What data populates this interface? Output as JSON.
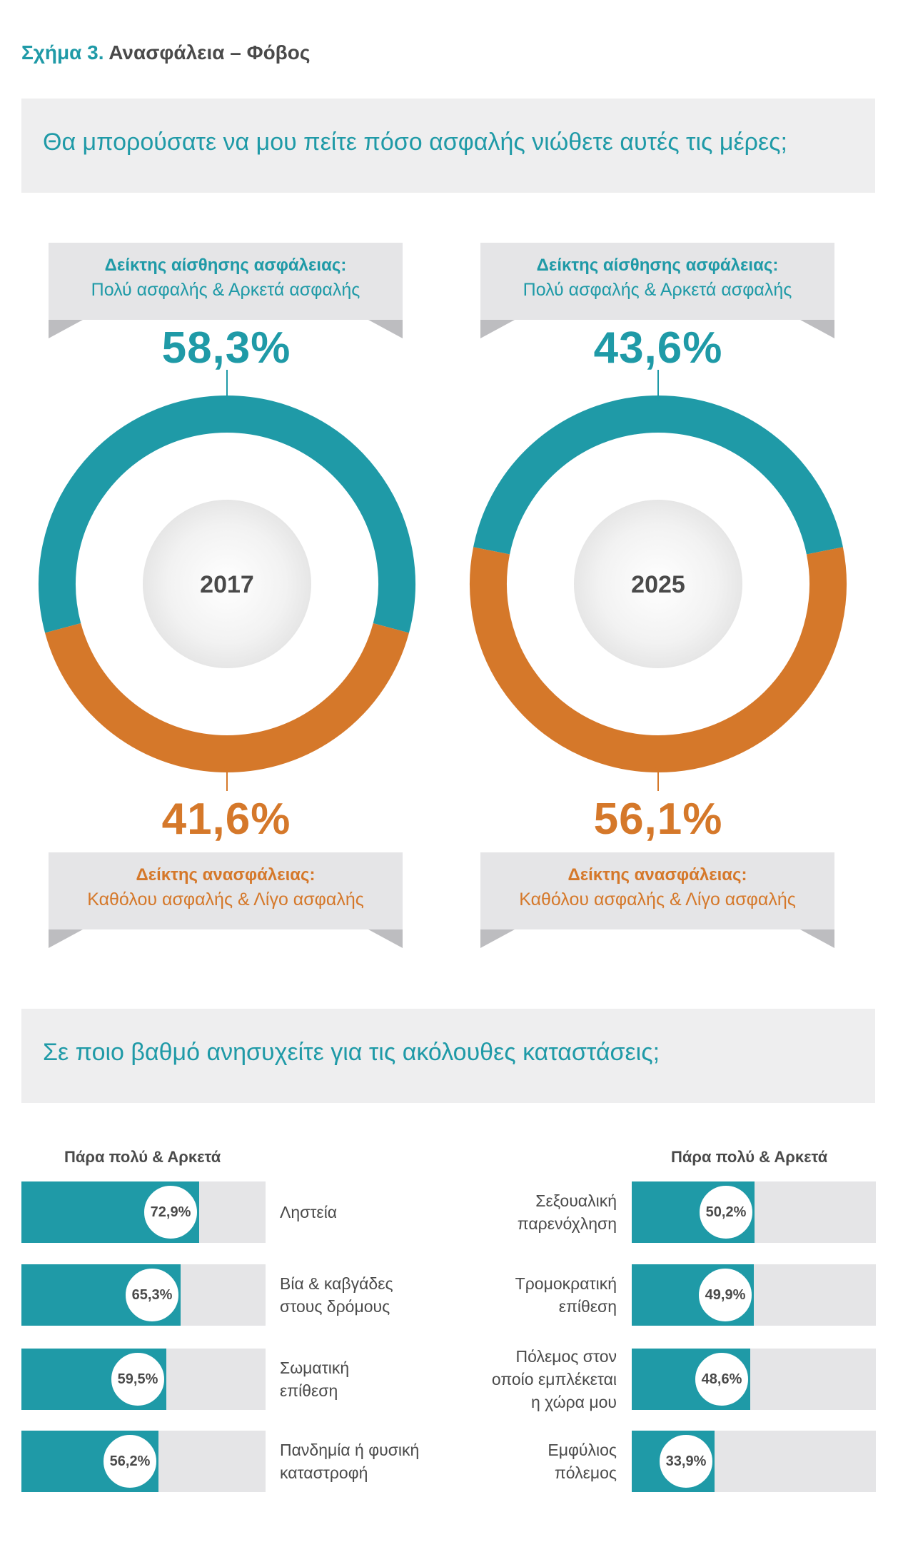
{
  "figure": {
    "number": "Σχήμα 3.",
    "name": "Ανασφάλεια – Φόβος"
  },
  "question_1": "Θα μπορούσατε να μου πείτε πόσο ασφαλής νιώθετε αυτές τις μέρες;",
  "question_2": "Σε ποιο βαθμό ανησυχείτε για τις ακόλουθες καταστάσεις;",
  "colors": {
    "teal": "#1f9aa7",
    "orange": "#d5782a",
    "panel": "#eeeeef",
    "bar_track": "#e5e5e7"
  },
  "security_banner": {
    "title": "Δείκτης αίσθησης ασφάλειας:",
    "subtitle": "Πολύ ασφαλής & Αρκετά ασφαλής"
  },
  "insecurity_banner": {
    "title": "Δείκτης ανασφάλειας:",
    "subtitle": "Καθόλου ασφαλής & Λίγο ασφαλής"
  },
  "chart_data": [
    {
      "type": "pie",
      "center_label": "2017",
      "slices": [
        {
          "label": "Δείκτης αίσθησης ασφάλειας",
          "value": 58.3,
          "display": "58,3%",
          "color": "#1f9aa7"
        },
        {
          "label": "Δείκτης ανασφάλειας",
          "value": 41.6,
          "display": "41,6%",
          "color": "#d5782a"
        }
      ]
    },
    {
      "type": "pie",
      "center_label": "2025",
      "slices": [
        {
          "label": "Δείκτης αίσθησης ασφάλειας",
          "value": 43.6,
          "display": "43,6%",
          "color": "#1f9aa7"
        },
        {
          "label": "Δείκτης ανασφάλειας",
          "value": 56.1,
          "display": "56,1%",
          "color": "#d5782a"
        }
      ]
    },
    {
      "type": "bar",
      "header": "Πάρα πολύ & Αρκετά",
      "xlim": [
        0,
        100
      ],
      "categories": [
        "Ληστεία",
        "Βία & καβγάδες\nστους δρόμους",
        "Σωματική\nεπίθεση",
        "Πανδημία ή φυσική\nκαταστροφή"
      ],
      "values": [
        72.9,
        65.3,
        59.5,
        56.2
      ],
      "labels": [
        "72,9%",
        "65,3%",
        "59,5%",
        "56,2%"
      ]
    },
    {
      "type": "bar",
      "header": "Πάρα πολύ & Αρκετά",
      "xlim": [
        0,
        100
      ],
      "categories": [
        "Σεξουαλική\nπαρενόχληση",
        "Τρομοκρατική\nεπίθεση",
        "Πόλεμος στον\nοποίο εμπλέκεται\nη χώρα μου",
        "Εμφύλιος\nπόλεμος"
      ],
      "values": [
        50.2,
        49.9,
        48.6,
        33.9
      ],
      "labels": [
        "50,2%",
        "49,9%",
        "48,6%",
        "33,9%"
      ]
    }
  ]
}
